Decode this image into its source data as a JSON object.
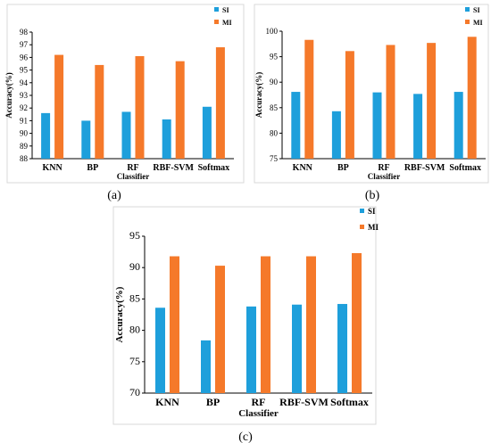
{
  "colors": {
    "SI": "#1e9fdb",
    "MI": "#f5792a"
  },
  "chart_data": [
    {
      "type": "bar",
      "caption": "(a)",
      "categories": [
        "KNN",
        "BP",
        "RF",
        "RBF-SVM",
        "Softmax"
      ],
      "series": [
        {
          "name": "SI",
          "values": [
            91.6,
            91.0,
            91.7,
            91.1,
            92.1
          ]
        },
        {
          "name": "MI",
          "values": [
            96.2,
            95.4,
            96.1,
            95.7,
            96.8
          ]
        }
      ],
      "xlabel": "Classifier",
      "ylabel": "Accuracy(%)",
      "ylim": [
        88,
        98
      ],
      "yticks": [
        88,
        89,
        90,
        91,
        92,
        93,
        94,
        95,
        96,
        97,
        98
      ],
      "legend": "top-right",
      "grid": false
    },
    {
      "type": "bar",
      "caption": "(b)",
      "categories": [
        "KNN",
        "BP",
        "RF",
        "RBF-SVM",
        "Softmax"
      ],
      "series": [
        {
          "name": "SI",
          "values": [
            88.1,
            84.3,
            88.0,
            87.7,
            88.1
          ]
        },
        {
          "name": "MI",
          "values": [
            98.3,
            96.1,
            97.3,
            97.7,
            98.9
          ]
        }
      ],
      "xlabel": "Classifier",
      "ylabel": "Accuracy(%)",
      "ylim": [
        75,
        100
      ],
      "yticks": [
        75,
        80,
        85,
        90,
        95,
        100
      ],
      "legend": "top-right",
      "grid": false
    },
    {
      "type": "bar",
      "caption": "(c)",
      "categories": [
        "KNN",
        "BP",
        "RF",
        "RBF-SVM",
        "Softmax"
      ],
      "series": [
        {
          "name": "SI",
          "values": [
            83.6,
            78.4,
            83.8,
            84.1,
            84.2
          ]
        },
        {
          "name": "MI",
          "values": [
            91.8,
            90.3,
            91.8,
            91.8,
            92.3
          ]
        }
      ],
      "xlabel": "Classifier",
      "ylabel": "Accuracy(%)",
      "ylim": [
        70,
        95
      ],
      "yticks": [
        70,
        75,
        80,
        85,
        90,
        95
      ],
      "legend": "top-right",
      "grid": false
    }
  ]
}
